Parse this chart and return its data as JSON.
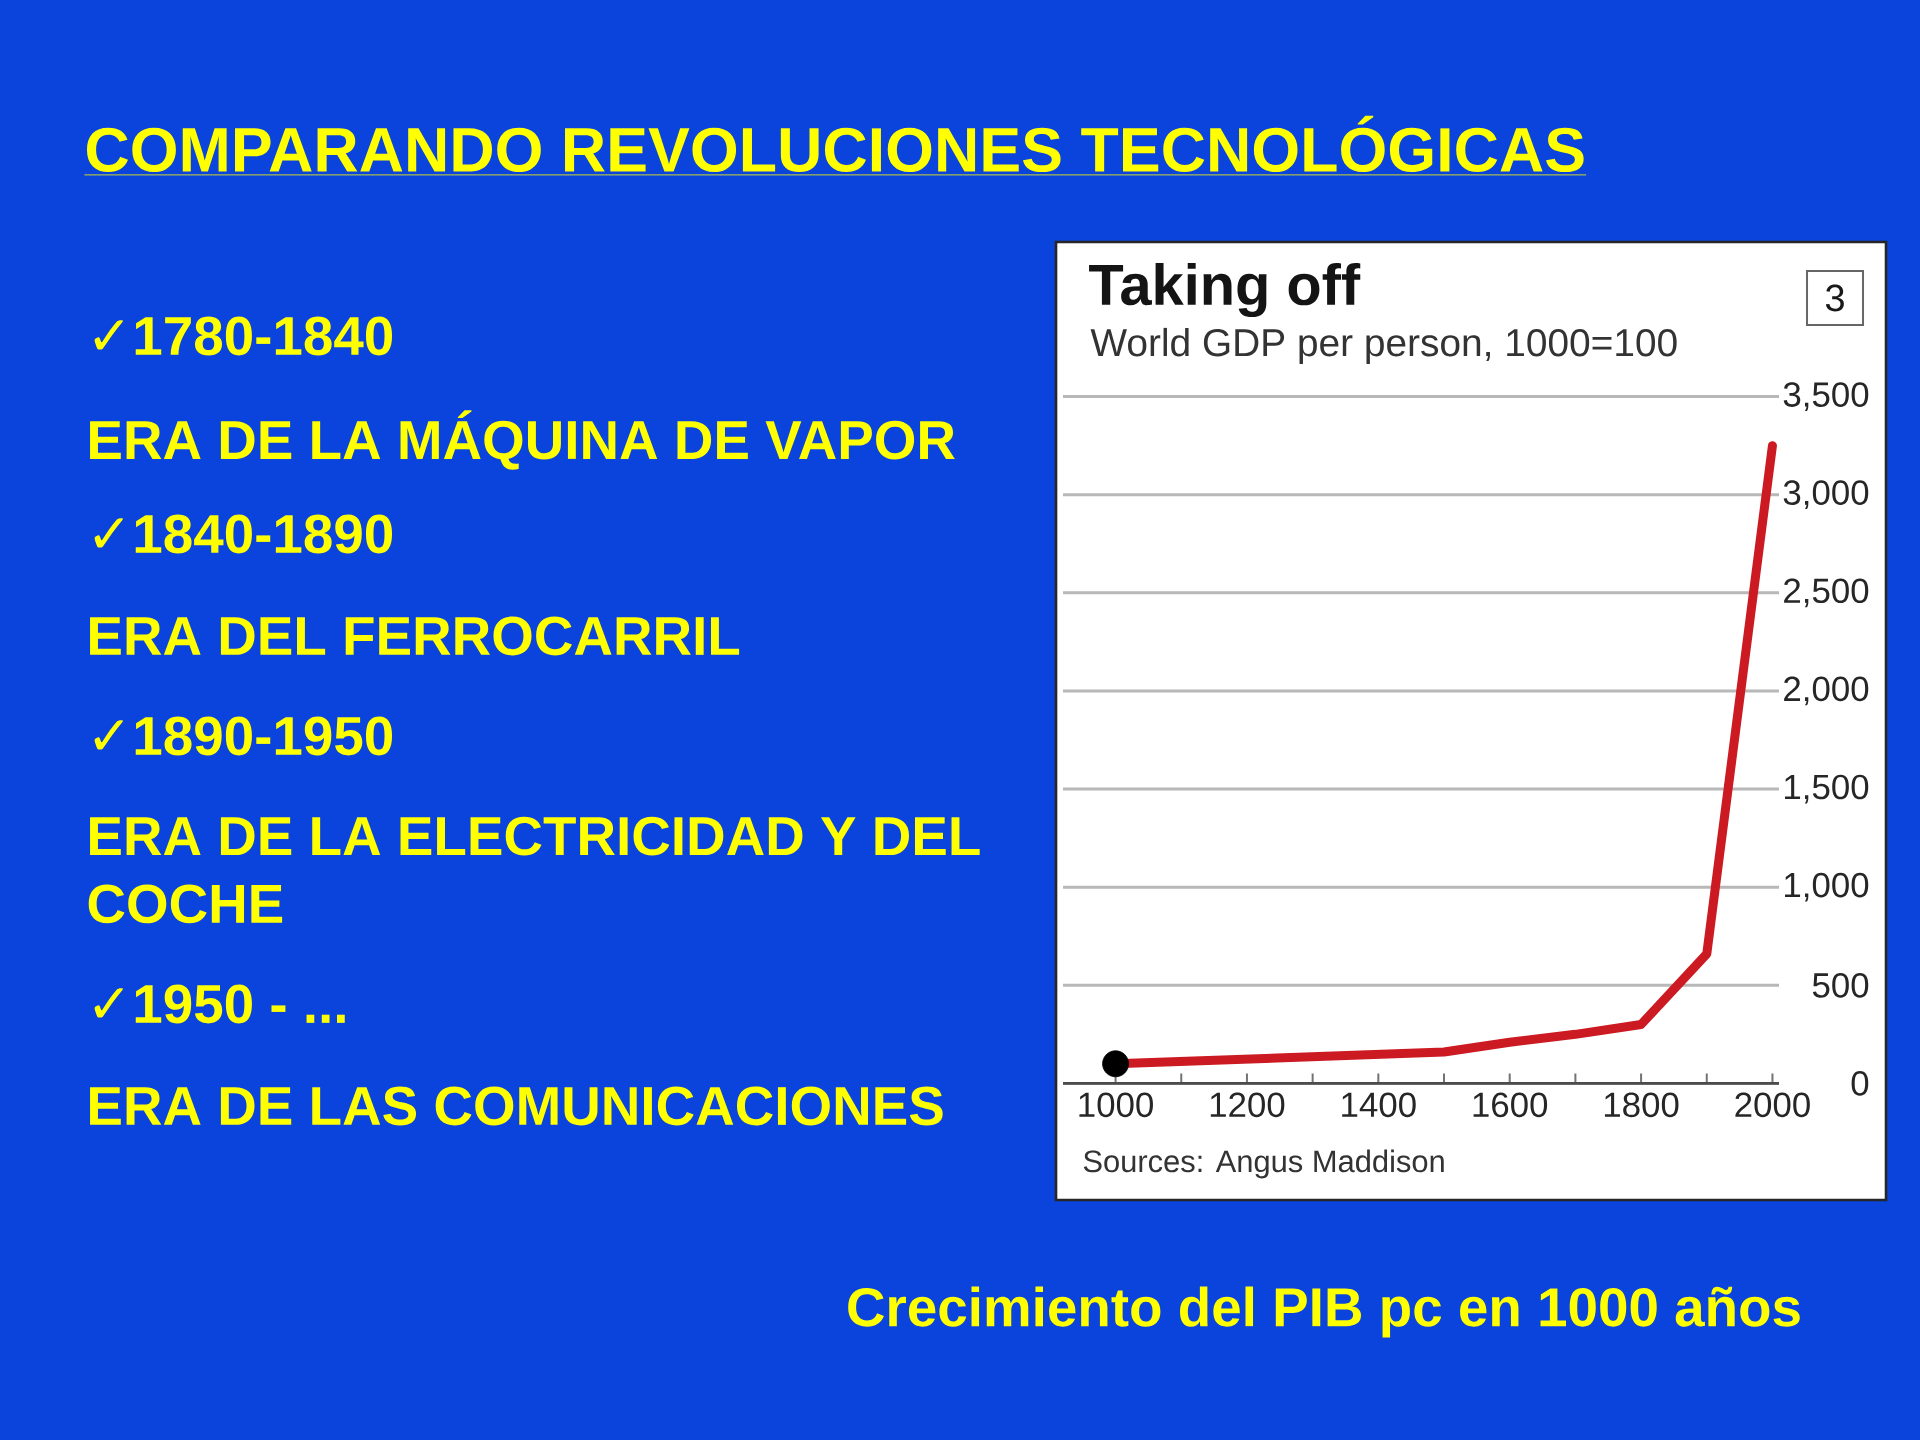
{
  "chart_data": {
    "type": "line",
    "title": "Taking off",
    "subtitle": "World GDP per person, 1000=100",
    "x": [
      1000,
      1500,
      1600,
      1700,
      1800,
      1900,
      2000
    ],
    "series": [
      {
        "color": "#cc1a22",
        "values": [
          100,
          160,
          210,
          250,
          300,
          660,
          3250
        ]
      },
      {
        "type": "scatter",
        "marker": "circle",
        "color": "#000000",
        "x": [
          1000
        ],
        "values": [
          100
        ]
      }
    ],
    "xlim": [
      920,
      2010
    ],
    "xticks": [
      1000,
      {
        "value": 1100,
        "label": null
      },
      1200,
      {
        "value": 1300,
        "label": null
      },
      1400,
      {
        "value": 1500,
        "label": null
      },
      1600,
      {
        "value": 1700,
        "label": null
      },
      1800,
      {
        "value": 1900,
        "label": null
      },
      2000
    ],
    "ylim": [
      0,
      3500
    ],
    "yticks": [
      0,
      500,
      {
        "value": 1000,
        "label": "1,000"
      },
      {
        "value": 1500,
        "label": "1,500"
      },
      {
        "value": 2000,
        "label": "2,000"
      },
      {
        "value": 2500,
        "label": "2,500"
      },
      {
        "value": 3000,
        "label": "3,000"
      },
      {
        "value": 3500,
        "label": "3,500"
      }
    ],
    "grid": "y",
    "annotations": [
      "COMPARANDO REVOLUCIONES TECNOLÓGICAS",
      "✓1780-1840",
      "ERA DE LA MÁQUINA DE VAPOR",
      "✓1840-1890",
      "ERA DEL FERROCARRIL",
      "✓1890-1950",
      "ERA DE LA ELECTRICIDAD Y DEL COCHE",
      "✓1950 - ...",
      "ERA DE LAS COMUNICACIONES",
      "3",
      "Sources: Angus Maddison",
      "Crecimiento del PIB pc en 1000 años"
    ]
  }
}
